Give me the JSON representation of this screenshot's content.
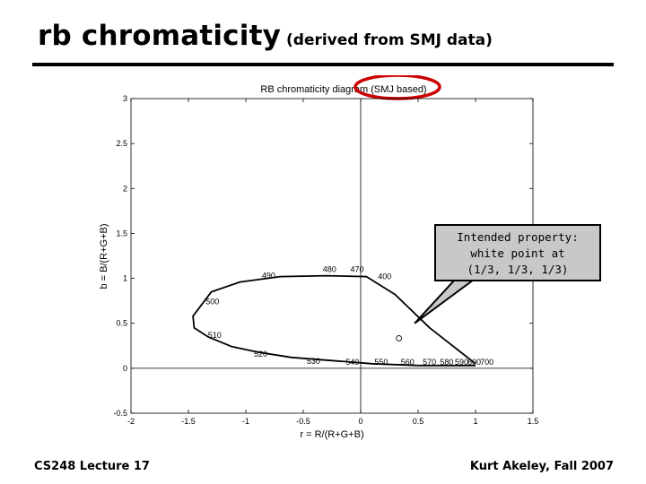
{
  "slide": {
    "title": "rb chromaticity",
    "subtitle": "(derived from SMJ data)",
    "footer_left": "CS248 Lecture 17",
    "footer_right": "Kurt Akeley, Fall 2007"
  },
  "callout": {
    "line1": "Intended property:",
    "line2": "white point at",
    "line3": "(1/3, 1/3, 1/3)"
  },
  "chart_data": {
    "type": "line",
    "title": "RB chromaticity diagram (SMJ based)",
    "xlabel": "r = R/(R+G+B)",
    "ylabel": "b = B/(R+G+B)",
    "xlim": [
      -2,
      1.5
    ],
    "ylim": [
      -0.5,
      3
    ],
    "xticks": [
      "-2",
      "-1.5",
      "-1",
      "-0.5",
      "0",
      "0.5",
      "1",
      "1.5"
    ],
    "yticks": [
      "-0.5",
      "0",
      "0.5",
      "1",
      "1.5",
      "2",
      "2.5",
      "3"
    ],
    "xtick_values": [
      -2,
      -1.5,
      -1,
      -0.5,
      0,
      0.5,
      1,
      1.5
    ],
    "ytick_values": [
      -0.5,
      0,
      0.5,
      1,
      1.5,
      2,
      2.5,
      3
    ],
    "grid": false,
    "locus": {
      "x": [
        1.0,
        0.6,
        0.3,
        0.05,
        -0.3,
        -0.7,
        -1.05,
        -1.3,
        -1.46,
        -1.45,
        -1.33,
        -1.12,
        -0.9,
        -0.6,
        -0.2,
        0.1,
        0.3,
        0.5,
        0.75,
        1.0
      ],
      "y": [
        0.05,
        0.45,
        0.82,
        1.02,
        1.03,
        1.02,
        0.96,
        0.85,
        0.58,
        0.45,
        0.35,
        0.24,
        0.18,
        0.12,
        0.08,
        0.05,
        0.04,
        0.03,
        0.03,
        0.03
      ]
    },
    "axes_lines": [
      {
        "x": [
          -2,
          1.5
        ],
        "y": [
          0,
          0
        ]
      },
      {
        "x": [
          0,
          0
        ],
        "y": [
          -0.5,
          3
        ]
      }
    ],
    "wavelength_labels": [
      {
        "text": "490",
        "x": -0.86,
        "y": 1.0
      },
      {
        "text": "480",
        "x": -0.33,
        "y": 1.07
      },
      {
        "text": "470",
        "x": -0.09,
        "y": 1.07
      },
      {
        "text": "400",
        "x": 0.15,
        "y": 0.99
      },
      {
        "text": "500",
        "x": -1.35,
        "y": 0.71
      },
      {
        "text": "510",
        "x": -1.33,
        "y": 0.34
      },
      {
        "text": "520",
        "x": -0.93,
        "y": 0.13
      },
      {
        "text": "530",
        "x": -0.47,
        "y": 0.05
      },
      {
        "text": "540",
        "x": -0.13,
        "y": 0.04
      },
      {
        "text": "550",
        "x": 0.12,
        "y": 0.04
      },
      {
        "text": "560",
        "x": 0.35,
        "y": 0.04
      },
      {
        "text": "570",
        "x": 0.54,
        "y": 0.04
      },
      {
        "text": "580",
        "x": 0.69,
        "y": 0.04
      },
      {
        "text": "590",
        "x": 0.82,
        "y": 0.04
      },
      {
        "text": "600",
        "x": 0.93,
        "y": 0.04
      },
      {
        "text": "700",
        "x": 1.04,
        "y": 0.04
      }
    ],
    "white_point": {
      "x": 0.333,
      "y": 0.333
    },
    "callout_anchor": {
      "x": 0.47,
      "y": 0.5
    },
    "highlight_color": "#cc0000"
  }
}
